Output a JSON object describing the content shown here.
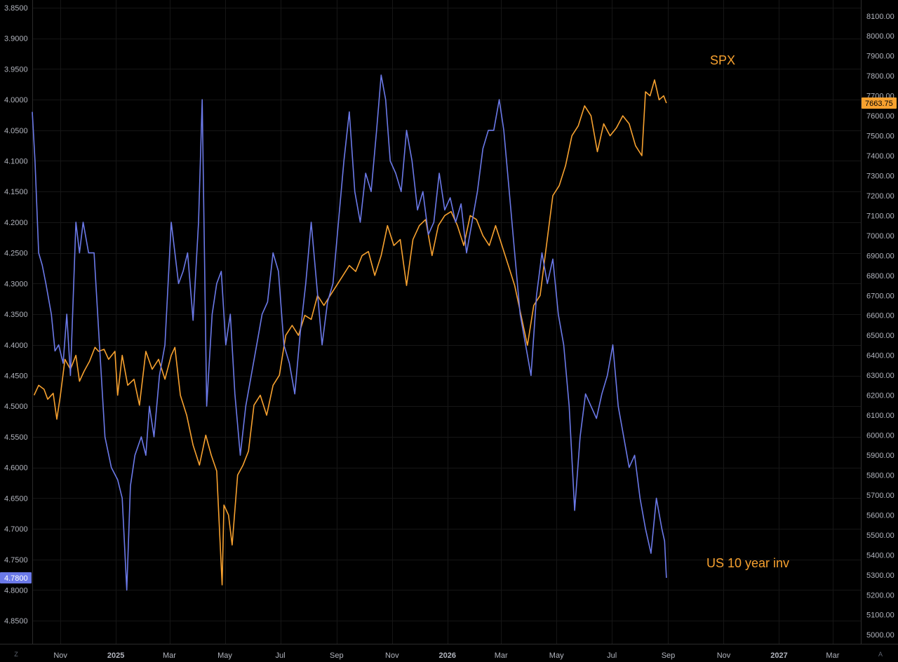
{
  "chart_data": {
    "type": "line",
    "grid": true,
    "x_ticks": [
      "Nov",
      "2025",
      "Mar",
      "May",
      "Jul",
      "Sep",
      "Nov",
      "2026",
      "Mar",
      "May",
      "Jul",
      "Sep",
      "Nov",
      "2027",
      "Mar"
    ],
    "x_tick_dates": [
      "2024-11-01",
      "2025-01-01",
      "2025-03-01",
      "2025-05-01",
      "2025-07-01",
      "2025-09-01",
      "2025-11-01",
      "2026-01-01",
      "2026-03-01",
      "2026-05-01",
      "2026-07-01",
      "2026-09-01",
      "2026-11-01",
      "2027-01-01",
      "2027-03-01"
    ],
    "x_range": [
      "2024-10-01",
      "2027-04-01"
    ],
    "left_axis": {
      "inverted": true,
      "range": [
        3.8375,
        4.8875
      ],
      "ticks": [
        "3.8500",
        "3.9000",
        "3.9500",
        "4.0000",
        "4.0500",
        "4.1000",
        "4.1500",
        "4.2000",
        "4.2500",
        "4.3000",
        "4.3500",
        "4.4000",
        "4.4500",
        "4.5000",
        "4.5500",
        "4.6000",
        "4.6500",
        "4.7000",
        "4.7500",
        "4.8000",
        "4.8500"
      ],
      "last_value_label": "4.7800",
      "last_value_color": "#6b79e8"
    },
    "right_axis": {
      "range": [
        4955,
        8180
      ],
      "ticks": [
        "8100.00",
        "8000.00",
        "7900.00",
        "7800.00",
        "7700.00",
        "7600.00",
        "7500.00",
        "7400.00",
        "7300.00",
        "7200.00",
        "7100.00",
        "7000.00",
        "6900.00",
        "6800.00",
        "6700.00",
        "6600.00",
        "6500.00",
        "6400.00",
        "6300.00",
        "6200.00",
        "6100.00",
        "6000.00",
        "5900.00",
        "5800.00",
        "5700.00",
        "5600.00",
        "5500.00",
        "5400.00",
        "5300.00",
        "5200.00",
        "5100.00",
        "5000.00"
      ],
      "last_value_label": "7663.75",
      "last_value_color": "#f7a12f"
    },
    "series": [
      {
        "name": "SPX",
        "axis": "right",
        "color": "#f7a12f",
        "points": [
          [
            "2024-10-03",
            6200
          ],
          [
            "2024-10-08",
            6250
          ],
          [
            "2024-10-14",
            6230
          ],
          [
            "2024-10-18",
            6180
          ],
          [
            "2024-10-24",
            6210
          ],
          [
            "2024-10-28",
            6080
          ],
          [
            "2024-11-01",
            6200
          ],
          [
            "2024-11-06",
            6380
          ],
          [
            "2024-11-12",
            6330
          ],
          [
            "2024-11-18",
            6400
          ],
          [
            "2024-11-22",
            6270
          ],
          [
            "2024-11-27",
            6320
          ],
          [
            "2024-12-03",
            6370
          ],
          [
            "2024-12-09",
            6440
          ],
          [
            "2024-12-13",
            6420
          ],
          [
            "2024-12-19",
            6430
          ],
          [
            "2024-12-24",
            6380
          ],
          [
            "2024-12-31",
            6420
          ],
          [
            "2025-01-03",
            6200
          ],
          [
            "2025-01-08",
            6400
          ],
          [
            "2025-01-14",
            6250
          ],
          [
            "2025-01-21",
            6280
          ],
          [
            "2025-01-27",
            6150
          ],
          [
            "2025-02-03",
            6420
          ],
          [
            "2025-02-10",
            6330
          ],
          [
            "2025-02-17",
            6380
          ],
          [
            "2025-02-24",
            6280
          ],
          [
            "2025-03-03",
            6400
          ],
          [
            "2025-03-07",
            6440
          ],
          [
            "2025-03-13",
            6200
          ],
          [
            "2025-03-20",
            6100
          ],
          [
            "2025-03-27",
            5950
          ],
          [
            "2025-04-03",
            5850
          ],
          [
            "2025-04-10",
            6000
          ],
          [
            "2025-04-16",
            5900
          ],
          [
            "2025-04-22",
            5820
          ],
          [
            "2025-04-28",
            5250
          ],
          [
            "2025-04-30",
            5650
          ],
          [
            "2025-05-05",
            5600
          ],
          [
            "2025-05-09",
            5450
          ],
          [
            "2025-05-15",
            5800
          ],
          [
            "2025-05-21",
            5850
          ],
          [
            "2025-05-27",
            5920
          ],
          [
            "2025-06-02",
            6150
          ],
          [
            "2025-06-09",
            6200
          ],
          [
            "2025-06-16",
            6100
          ],
          [
            "2025-06-23",
            6250
          ],
          [
            "2025-06-30",
            6300
          ],
          [
            "2025-07-07",
            6500
          ],
          [
            "2025-07-14",
            6550
          ],
          [
            "2025-07-21",
            6500
          ],
          [
            "2025-07-28",
            6600
          ],
          [
            "2025-08-04",
            6580
          ],
          [
            "2025-08-11",
            6700
          ],
          [
            "2025-08-18",
            6650
          ],
          [
            "2025-08-25",
            6700
          ],
          [
            "2025-09-01",
            6750
          ],
          [
            "2025-09-08",
            6800
          ],
          [
            "2025-09-15",
            6850
          ],
          [
            "2025-09-22",
            6820
          ],
          [
            "2025-09-29",
            6900
          ],
          [
            "2025-10-06",
            6920
          ],
          [
            "2025-10-13",
            6800
          ],
          [
            "2025-10-20",
            6900
          ],
          [
            "2025-10-27",
            7050
          ],
          [
            "2025-11-03",
            6950
          ],
          [
            "2025-11-10",
            6980
          ],
          [
            "2025-11-17",
            6750
          ],
          [
            "2025-11-24",
            6980
          ],
          [
            "2025-12-01",
            7050
          ],
          [
            "2025-12-08",
            7080
          ],
          [
            "2025-12-15",
            6900
          ],
          [
            "2025-12-22",
            7050
          ],
          [
            "2025-12-29",
            7100
          ],
          [
            "2026-01-05",
            7120
          ],
          [
            "2026-01-12",
            7050
          ],
          [
            "2026-01-19",
            6950
          ],
          [
            "2026-01-26",
            7100
          ],
          [
            "2026-02-02",
            7080
          ],
          [
            "2026-02-09",
            7000
          ],
          [
            "2026-02-16",
            6950
          ],
          [
            "2026-02-23",
            7050
          ],
          [
            "2026-03-02",
            6950
          ],
          [
            "2026-03-09",
            6850
          ],
          [
            "2026-03-16",
            6750
          ],
          [
            "2026-03-23",
            6600
          ],
          [
            "2026-03-30",
            6450
          ],
          [
            "2026-04-06",
            6650
          ],
          [
            "2026-04-13",
            6700
          ],
          [
            "2026-04-20",
            6950
          ],
          [
            "2026-04-27",
            7200
          ],
          [
            "2026-05-04",
            7250
          ],
          [
            "2026-05-11",
            7350
          ],
          [
            "2026-05-18",
            7500
          ],
          [
            "2026-05-25",
            7550
          ],
          [
            "2026-06-01",
            7650
          ],
          [
            "2026-06-08",
            7600
          ],
          [
            "2026-06-15",
            7420
          ],
          [
            "2026-06-22",
            7560
          ],
          [
            "2026-06-29",
            7500
          ],
          [
            "2026-07-06",
            7540
          ],
          [
            "2026-07-13",
            7600
          ],
          [
            "2026-07-20",
            7560
          ],
          [
            "2026-07-27",
            7450
          ],
          [
            "2026-08-03",
            7400
          ],
          [
            "2026-08-07",
            7720
          ],
          [
            "2026-08-12",
            7700
          ],
          [
            "2026-08-17",
            7780
          ],
          [
            "2026-08-22",
            7680
          ],
          [
            "2026-08-27",
            7700
          ],
          [
            "2026-08-30",
            7663.75
          ]
        ]
      },
      {
        "name": "US 10 year inv",
        "axis": "left",
        "color": "#6b79e8",
        "points": [
          [
            "2024-10-01",
            4.02
          ],
          [
            "2024-10-04",
            4.1
          ],
          [
            "2024-10-08",
            4.25
          ],
          [
            "2024-10-12",
            4.27
          ],
          [
            "2024-10-16",
            4.3
          ],
          [
            "2024-10-22",
            4.35
          ],
          [
            "2024-10-26",
            4.41
          ],
          [
            "2024-10-30",
            4.4
          ],
          [
            "2024-11-04",
            4.43
          ],
          [
            "2024-11-08",
            4.35
          ],
          [
            "2024-11-12",
            4.45
          ],
          [
            "2024-11-18",
            4.2
          ],
          [
            "2024-11-22",
            4.25
          ],
          [
            "2024-11-26",
            4.2
          ],
          [
            "2024-12-02",
            4.25
          ],
          [
            "2024-12-08",
            4.25
          ],
          [
            "2024-12-14",
            4.4
          ],
          [
            "2024-12-20",
            4.55
          ],
          [
            "2024-12-27",
            4.6
          ],
          [
            "2025-01-03",
            4.62
          ],
          [
            "2025-01-08",
            4.65
          ],
          [
            "2025-01-13",
            4.8
          ],
          [
            "2025-01-17",
            4.63
          ],
          [
            "2025-01-22",
            4.58
          ],
          [
            "2025-01-29",
            4.55
          ],
          [
            "2025-02-03",
            4.58
          ],
          [
            "2025-02-07",
            4.5
          ],
          [
            "2025-02-12",
            4.55
          ],
          [
            "2025-02-18",
            4.45
          ],
          [
            "2025-02-24",
            4.4
          ],
          [
            "2025-03-03",
            4.2
          ],
          [
            "2025-03-07",
            4.25
          ],
          [
            "2025-03-11",
            4.3
          ],
          [
            "2025-03-16",
            4.28
          ],
          [
            "2025-03-21",
            4.25
          ],
          [
            "2025-03-27",
            4.36
          ],
          [
            "2025-04-02",
            4.2
          ],
          [
            "2025-04-06",
            4.0
          ],
          [
            "2025-04-11",
            4.5
          ],
          [
            "2025-04-17",
            4.35
          ],
          [
            "2025-04-22",
            4.3
          ],
          [
            "2025-04-27",
            4.28
          ],
          [
            "2025-05-02",
            4.4
          ],
          [
            "2025-05-07",
            4.35
          ],
          [
            "2025-05-12",
            4.48
          ],
          [
            "2025-05-18",
            4.58
          ],
          [
            "2025-05-24",
            4.5
          ],
          [
            "2025-05-30",
            4.45
          ],
          [
            "2025-06-05",
            4.4
          ],
          [
            "2025-06-11",
            4.35
          ],
          [
            "2025-06-17",
            4.33
          ],
          [
            "2025-06-23",
            4.25
          ],
          [
            "2025-06-29",
            4.28
          ],
          [
            "2025-07-05",
            4.4
          ],
          [
            "2025-07-11",
            4.43
          ],
          [
            "2025-07-17",
            4.48
          ],
          [
            "2025-07-23",
            4.38
          ],
          [
            "2025-07-29",
            4.3
          ],
          [
            "2025-08-04",
            4.2
          ],
          [
            "2025-08-10",
            4.3
          ],
          [
            "2025-08-16",
            4.4
          ],
          [
            "2025-08-22",
            4.33
          ],
          [
            "2025-08-28",
            4.3
          ],
          [
            "2025-09-03",
            4.2
          ],
          [
            "2025-09-09",
            4.1
          ],
          [
            "2025-09-15",
            4.02
          ],
          [
            "2025-09-21",
            4.15
          ],
          [
            "2025-09-27",
            4.2
          ],
          [
            "2025-10-03",
            4.12
          ],
          [
            "2025-10-09",
            4.15
          ],
          [
            "2025-10-15",
            4.05
          ],
          [
            "2025-10-20",
            3.96
          ],
          [
            "2025-10-25",
            4.0
          ],
          [
            "2025-10-30",
            4.1
          ],
          [
            "2025-11-05",
            4.12
          ],
          [
            "2025-11-11",
            4.15
          ],
          [
            "2025-11-17",
            4.05
          ],
          [
            "2025-11-23",
            4.1
          ],
          [
            "2025-11-29",
            4.18
          ],
          [
            "2025-12-05",
            4.15
          ],
          [
            "2025-12-11",
            4.22
          ],
          [
            "2025-12-17",
            4.2
          ],
          [
            "2025-12-23",
            4.12
          ],
          [
            "2025-12-29",
            4.18
          ],
          [
            "2026-01-04",
            4.16
          ],
          [
            "2026-01-10",
            4.2
          ],
          [
            "2026-01-16",
            4.17
          ],
          [
            "2026-01-22",
            4.25
          ],
          [
            "2026-01-28",
            4.2
          ],
          [
            "2026-02-03",
            4.15
          ],
          [
            "2026-02-09",
            4.08
          ],
          [
            "2026-02-15",
            4.05
          ],
          [
            "2026-02-21",
            4.05
          ],
          [
            "2026-02-27",
            4.0
          ],
          [
            "2026-03-04",
            4.05
          ],
          [
            "2026-03-10",
            4.15
          ],
          [
            "2026-03-16",
            4.25
          ],
          [
            "2026-03-22",
            4.35
          ],
          [
            "2026-03-28",
            4.4
          ],
          [
            "2026-04-03",
            4.45
          ],
          [
            "2026-04-09",
            4.32
          ],
          [
            "2026-04-15",
            4.25
          ],
          [
            "2026-04-21",
            4.3
          ],
          [
            "2026-04-27",
            4.26
          ],
          [
            "2026-05-03",
            4.35
          ],
          [
            "2026-05-09",
            4.4
          ],
          [
            "2026-05-15",
            4.5
          ],
          [
            "2026-05-21",
            4.67
          ],
          [
            "2026-05-27",
            4.55
          ],
          [
            "2026-06-02",
            4.48
          ],
          [
            "2026-06-08",
            4.5
          ],
          [
            "2026-06-14",
            4.52
          ],
          [
            "2026-06-20",
            4.48
          ],
          [
            "2026-06-26",
            4.45
          ],
          [
            "2026-07-02",
            4.4
          ],
          [
            "2026-07-08",
            4.5
          ],
          [
            "2026-07-14",
            4.55
          ],
          [
            "2026-07-20",
            4.6
          ],
          [
            "2026-07-26",
            4.58
          ],
          [
            "2026-08-01",
            4.65
          ],
          [
            "2026-08-07",
            4.7
          ],
          [
            "2026-08-13",
            4.74
          ],
          [
            "2026-08-19",
            4.65
          ],
          [
            "2026-08-25",
            4.7
          ],
          [
            "2026-08-28",
            4.72
          ],
          [
            "2026-08-30",
            4.78
          ]
        ]
      }
    ],
    "annotations": [
      {
        "text": "SPX",
        "color": "#f7a12f"
      },
      {
        "text": "US 10 year inv",
        "color": "#f7a12f"
      }
    ],
    "corner_labels": {
      "left": "Z",
      "right": "A"
    }
  }
}
